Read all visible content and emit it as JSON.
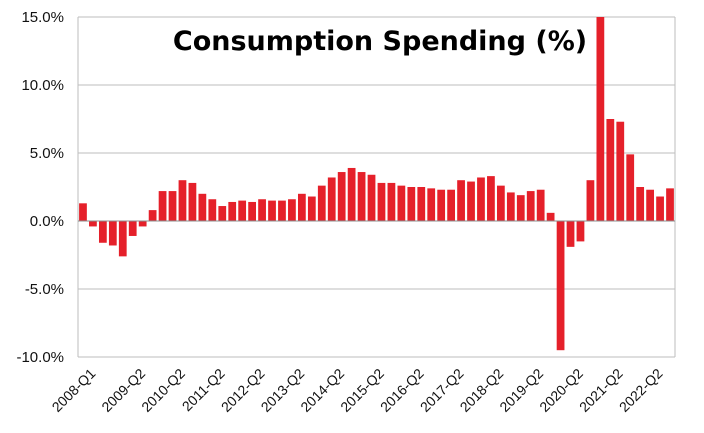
{
  "chart_data": {
    "type": "bar",
    "title": "Consumption Spending (%)",
    "xlabel": "",
    "ylabel": "",
    "ylim": [
      -10,
      15
    ],
    "yticks": [
      -10,
      -5,
      0,
      5,
      10,
      15
    ],
    "ytick_labels": [
      "-10.0%",
      "-5.0%",
      "0.0%",
      "5.0%",
      "10.0%",
      "15.0%"
    ],
    "xtick_labels": [
      "2008-Q1",
      "2009-Q2",
      "2010-Q2",
      "2011-Q2",
      "2012-Q2",
      "2013-Q2",
      "2014-Q2",
      "2015-Q2",
      "2016-Q2",
      "2017-Q2",
      "2018-Q2",
      "2019-Q2",
      "2020-Q2",
      "2021-Q2",
      "2022-Q2"
    ],
    "xtick_indices": [
      0,
      5,
      9,
      13,
      17,
      21,
      25,
      29,
      33,
      37,
      41,
      45,
      49,
      53,
      57
    ],
    "grid": true,
    "legend": "none",
    "color": "#e5202a",
    "categories": [
      "2008-Q1",
      "2008-Q2",
      "2008-Q3",
      "2008-Q4",
      "2009-Q1",
      "2009-Q2",
      "2009-Q3",
      "2009-Q4",
      "2010-Q1",
      "2010-Q2",
      "2010-Q3",
      "2010-Q4",
      "2011-Q1",
      "2011-Q2",
      "2011-Q3",
      "2011-Q4",
      "2012-Q1",
      "2012-Q2",
      "2012-Q3",
      "2012-Q4",
      "2013-Q1",
      "2013-Q2",
      "2013-Q3",
      "2013-Q4",
      "2014-Q1",
      "2014-Q2",
      "2014-Q3",
      "2014-Q4",
      "2015-Q1",
      "2015-Q2",
      "2015-Q3",
      "2015-Q4",
      "2016-Q1",
      "2016-Q2",
      "2016-Q3",
      "2016-Q4",
      "2017-Q1",
      "2017-Q2",
      "2017-Q3",
      "2017-Q4",
      "2018-Q1",
      "2018-Q2",
      "2018-Q3",
      "2018-Q4",
      "2019-Q1",
      "2019-Q2",
      "2019-Q3",
      "2019-Q4",
      "2020-Q1",
      "2020-Q2",
      "2020-Q3",
      "2020-Q4",
      "2021-Q1",
      "2021-Q2",
      "2021-Q3",
      "2021-Q4",
      "2022-Q1",
      "2022-Q2",
      "2022-Q3",
      "2022-Q4"
    ],
    "values": [
      1.3,
      -0.4,
      -1.6,
      -1.8,
      -2.6,
      -1.1,
      -0.4,
      0.8,
      2.2,
      2.2,
      3.0,
      2.8,
      2.0,
      1.6,
      1.1,
      1.4,
      1.5,
      1.4,
      1.6,
      1.5,
      1.5,
      1.6,
      2.0,
      1.8,
      2.6,
      3.2,
      3.6,
      3.9,
      3.6,
      3.4,
      2.8,
      2.8,
      2.6,
      2.5,
      2.5,
      2.4,
      2.3,
      2.3,
      3.0,
      2.9,
      3.2,
      3.3,
      2.6,
      2.1,
      1.9,
      2.2,
      2.3,
      0.6,
      -9.5,
      -1.9,
      -1.5,
      3.0,
      15.5,
      7.5,
      7.3,
      4.9,
      2.5,
      2.3,
      1.8,
      2.4
    ]
  }
}
